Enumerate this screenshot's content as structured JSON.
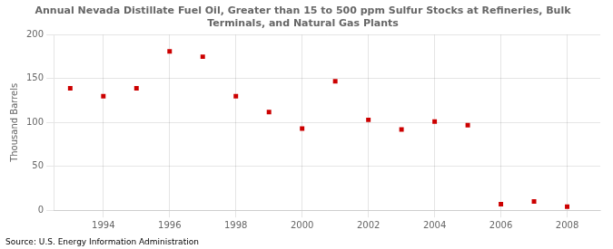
{
  "chart_data": {
    "type": "scatter",
    "title": "Annual Nevada Distillate Fuel Oil, Greater than 15 to 500 ppm Sulfur Stocks at Refineries, Bulk\nTerminals, and Natural Gas Plants",
    "ylabel": "Thousand Barrels",
    "annotations": [
      "Source: U.S. Energy Information Administration"
    ],
    "x": [
      1993,
      1994,
      1995,
      1996,
      1997,
      1998,
      1999,
      2000,
      2001,
      2002,
      2003,
      2004,
      2005,
      2006,
      2007,
      2008
    ],
    "values": [
      139,
      130,
      139,
      181,
      175,
      130,
      112,
      93,
      147,
      103,
      92,
      101,
      97,
      7,
      10,
      4
    ],
    "color": "#cc0000",
    "marker": "square",
    "xlim": [
      1992.5,
      2009.0
    ],
    "ylim": [
      0,
      200
    ],
    "xticks": [
      1994,
      1996,
      1998,
      2000,
      2002,
      2004,
      2006,
      2008
    ],
    "yticks": [
      0,
      50,
      100,
      150,
      200
    ],
    "grid": true
  }
}
